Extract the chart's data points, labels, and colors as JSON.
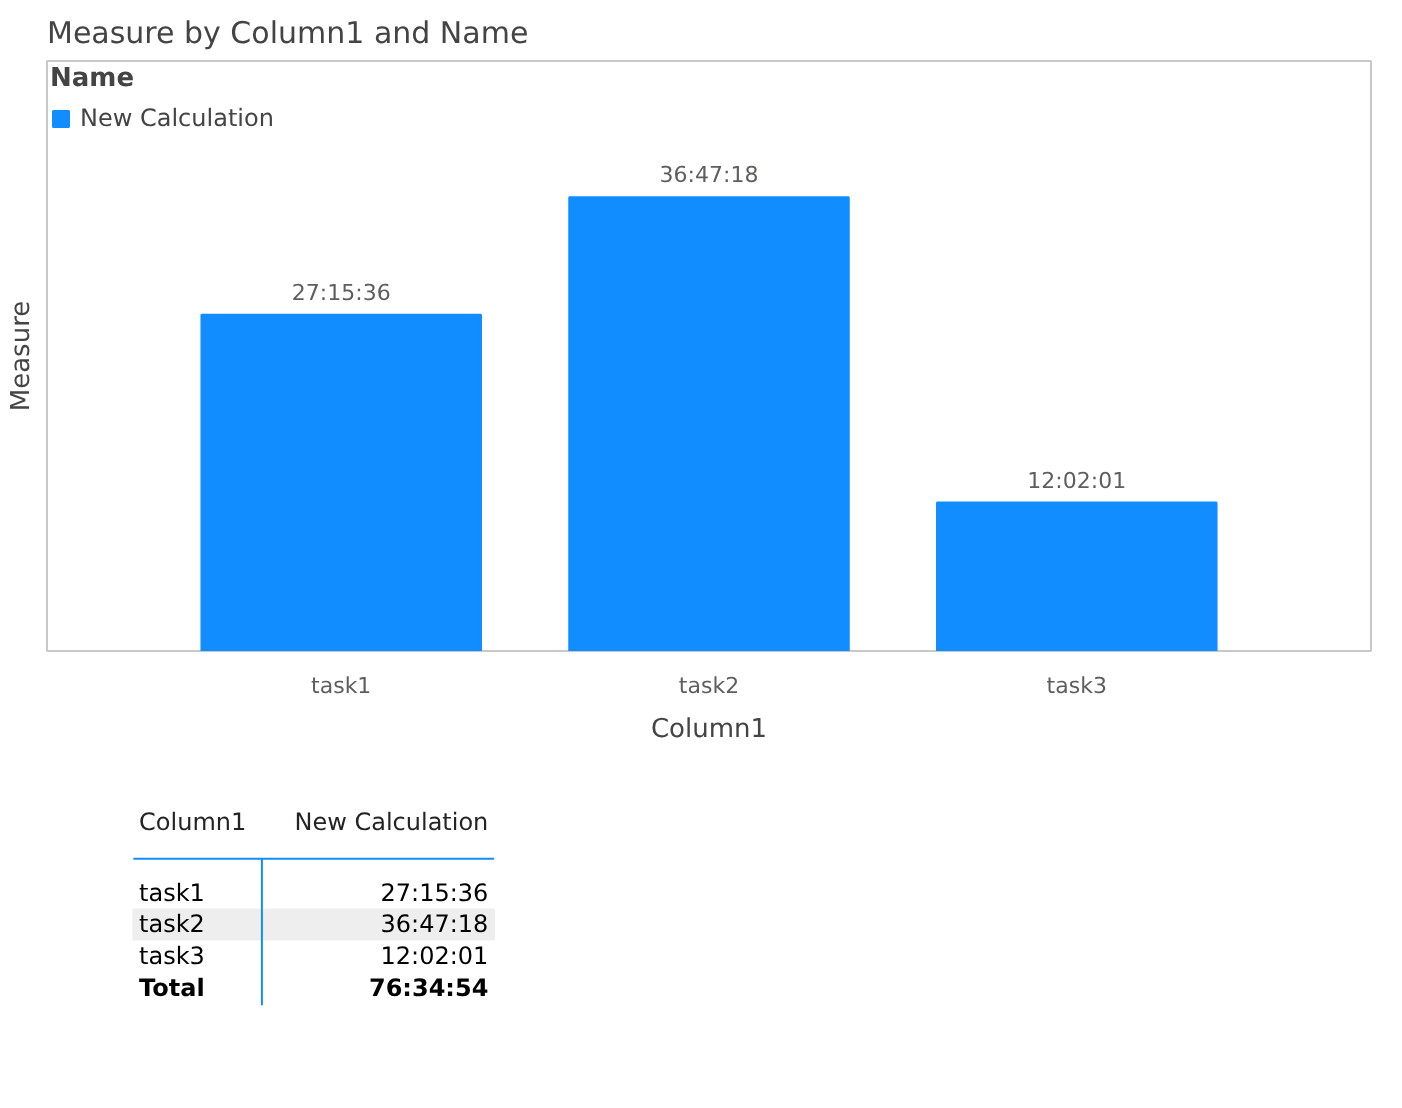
{
  "chart_data": {
    "type": "bar",
    "title": "Measure by Column1 and Name",
    "xlabel": "Column1",
    "ylabel": "Measure",
    "legend_title": "Name",
    "categories": [
      "task1",
      "task2",
      "task3"
    ],
    "series": [
      {
        "name": "New Calculation",
        "color": "#118dff",
        "values": [
          27.26,
          36.7883,
          12.0336
        ],
        "value_labels": [
          "27:15:36",
          "36:47:18",
          "12:02:01"
        ]
      }
    ],
    "legend": "top left",
    "grid": false,
    "annotations": [
      "Column1",
      "New Calculation",
      "Total",
      "76:34:54"
    ]
  }
}
